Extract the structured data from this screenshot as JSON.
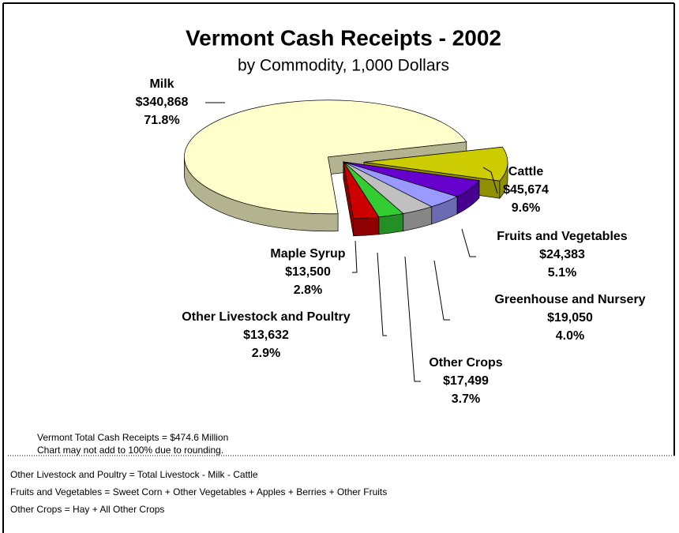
{
  "chart_data": {
    "type": "pie",
    "title": "Vermont Cash Receipts - 2002",
    "subtitle": "by Commodity, 1,000 Dollars",
    "categories": [
      "Milk",
      "Cattle",
      "Fruits and Vegetables",
      "Greenhouse and Nursery",
      "Other Crops",
      "Other Livestock and Poultry",
      "Maple Syrup"
    ],
    "values": [
      340868,
      45674,
      24383,
      19050,
      17499,
      13632,
      13500
    ],
    "value_labels": [
      "$340,868",
      "$45,674",
      "$24,383",
      "$19,050",
      "$17,499",
      "$13,632",
      "$13,500"
    ],
    "percentages": [
      71.8,
      9.6,
      5.1,
      4.0,
      3.7,
      2.9,
      2.8
    ],
    "percentage_labels": [
      "71.8%",
      "9.6%",
      "5.1%",
      "4.0%",
      "3.7%",
      "2.9%",
      "2.8%"
    ],
    "colors": [
      "#ffffcc",
      "#cccc00",
      "#6600cc",
      "#9999ff",
      "#c0c0c0",
      "#33cc33",
      "#cc0000"
    ],
    "notes": [
      "Vermont Total Cash Receipts = $474.6 Million",
      "Chart may not add to 100% due to rounding."
    ],
    "footnotes": [
      "Other Livestock and Poultry = Total Livestock - Milk - Cattle",
      "Fruits and Vegetables = Sweet Corn + Other Vegetables + Apples + Berries + Other Fruits",
      "Other Crops = Hay + All Other Crops"
    ]
  }
}
